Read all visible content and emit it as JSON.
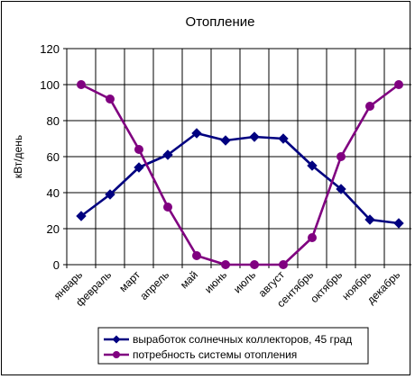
{
  "chart_data": {
    "type": "line",
    "title": "Отопление",
    "xlabel": "",
    "ylabel": "кВт/день",
    "ylim": [
      0,
      120
    ],
    "yticks": [
      0,
      20,
      40,
      60,
      80,
      100,
      120
    ],
    "grid": true,
    "legend_position": "bottom",
    "categories": [
      "январь",
      "февраль",
      "март",
      "апрель",
      "май",
      "июнь",
      "июль",
      "август",
      "сентябрь",
      "октябрь",
      "ноябрь",
      "декабрь"
    ],
    "series": [
      {
        "name": "выработок солнечных коллекторов, 45 град",
        "color": "#000080",
        "marker": "diamond",
        "values": [
          27,
          39,
          54,
          61,
          73,
          69,
          71,
          70,
          55,
          42,
          25,
          23
        ]
      },
      {
        "name": "потребность системы отопления",
        "color": "#800080",
        "marker": "circle",
        "values": [
          100,
          92,
          64,
          32,
          5,
          0,
          0,
          0,
          15,
          60,
          88,
          100
        ]
      }
    ]
  }
}
